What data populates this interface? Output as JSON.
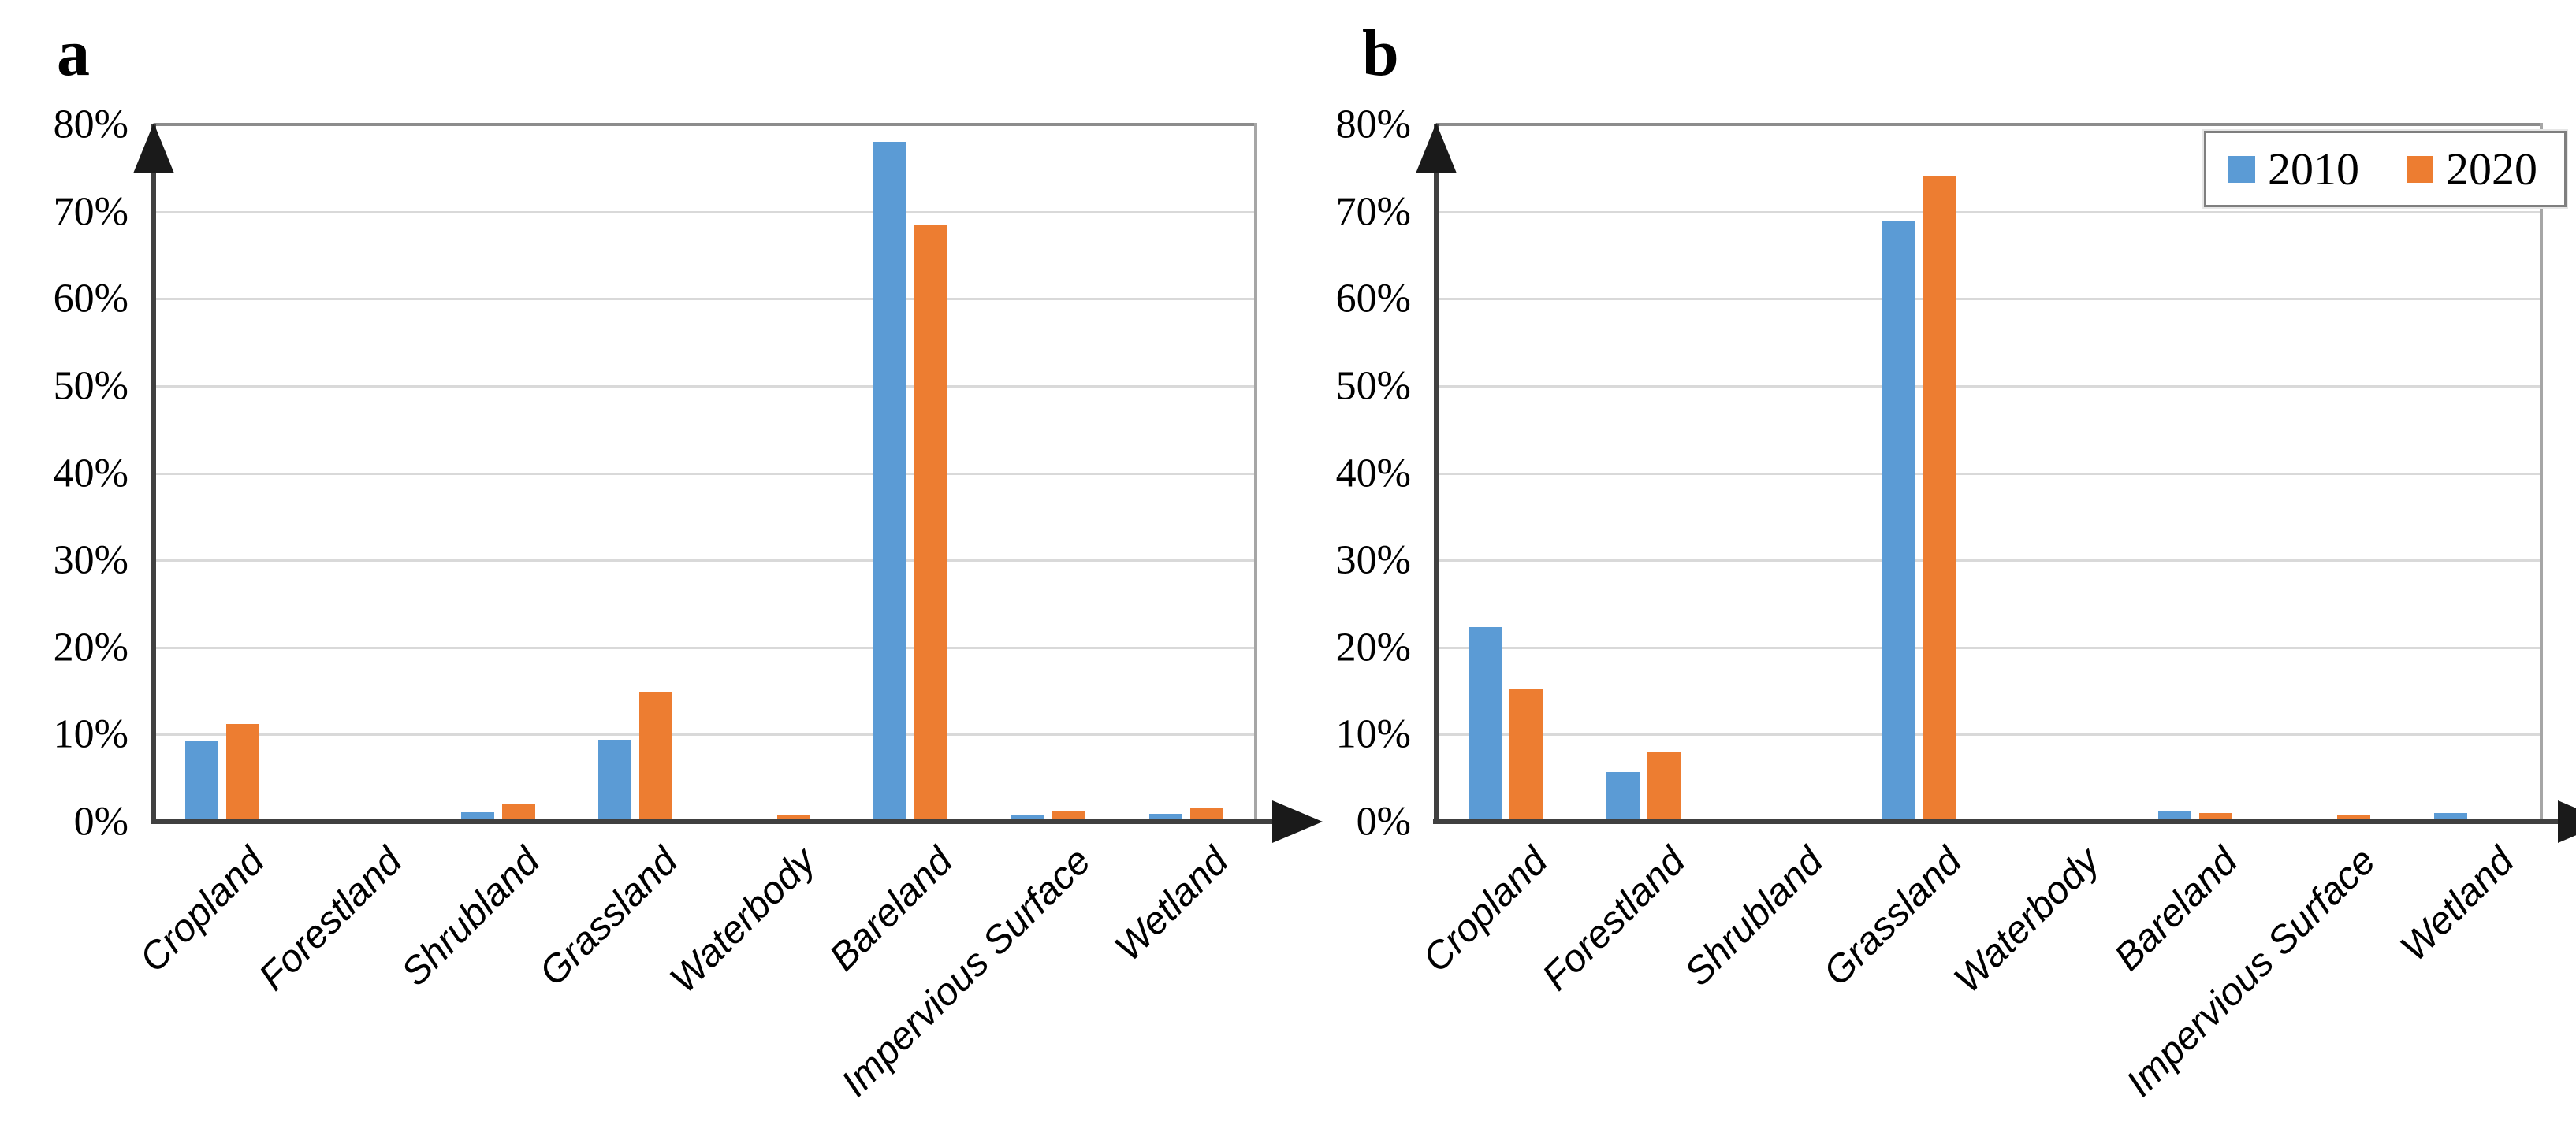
{
  "figure": {
    "panels": [
      {
        "letter": "a"
      },
      {
        "letter": "b"
      }
    ]
  },
  "legend": {
    "items": [
      {
        "label": "2010",
        "color": "#5B9BD5"
      },
      {
        "label": "2020",
        "color": "#ED7D31"
      }
    ],
    "position": "top-right-of-panel-b"
  },
  "colors": {
    "blue_2010": "#5B9BD5",
    "orange_2020": "#ED7D31",
    "gridline": "#D9D9D9",
    "frame": "#8C8C8C",
    "axis": "#404040",
    "arrow": "#1A1A1A"
  },
  "chart_data": [
    {
      "type": "bar",
      "panel": "a",
      "title": "",
      "xlabel": "",
      "ylabel": "",
      "categories": [
        "Cropland",
        "Forestland",
        "Shrubland",
        "Grassland",
        "Waterbody",
        "Bareland",
        "Impervious Surface",
        "Wetland"
      ],
      "series": [
        {
          "name": "2010",
          "color": "#5B9BD5",
          "values": [
            9.3,
            0.1,
            1.1,
            9.4,
            0.4,
            78.0,
            0.7,
            0.9
          ]
        },
        {
          "name": "2020",
          "color": "#ED7D31",
          "values": [
            11.2,
            0.1,
            2.0,
            14.8,
            0.7,
            68.5,
            1.2,
            1.5
          ]
        }
      ],
      "ylim": [
        0,
        80
      ],
      "ytick_labels": [
        "0%",
        "10%",
        "20%",
        "30%",
        "40%",
        "50%",
        "60%",
        "70%",
        "80%"
      ],
      "grid": true,
      "legend_visible": false
    },
    {
      "type": "bar",
      "panel": "b",
      "title": "",
      "xlabel": "",
      "ylabel": "",
      "categories": [
        "Cropland",
        "Forestland",
        "Shrubland",
        "Grassland",
        "Waterbody",
        "Bareland",
        "Impervious Surface",
        "Wetland"
      ],
      "series": [
        {
          "name": "2010",
          "color": "#5B9BD5",
          "values": [
            22.3,
            5.7,
            0.0,
            69.0,
            0.0,
            1.2,
            0.1,
            1.0
          ]
        },
        {
          "name": "2020",
          "color": "#ED7D31",
          "values": [
            15.3,
            8.0,
            0.0,
            74.0,
            0.0,
            1.0,
            0.7,
            0.3
          ]
        }
      ],
      "ylim": [
        0,
        80
      ],
      "ytick_labels": [
        "0%",
        "10%",
        "20%",
        "30%",
        "40%",
        "50%",
        "60%",
        "70%",
        "80%"
      ],
      "grid": true,
      "legend_visible": true
    }
  ]
}
